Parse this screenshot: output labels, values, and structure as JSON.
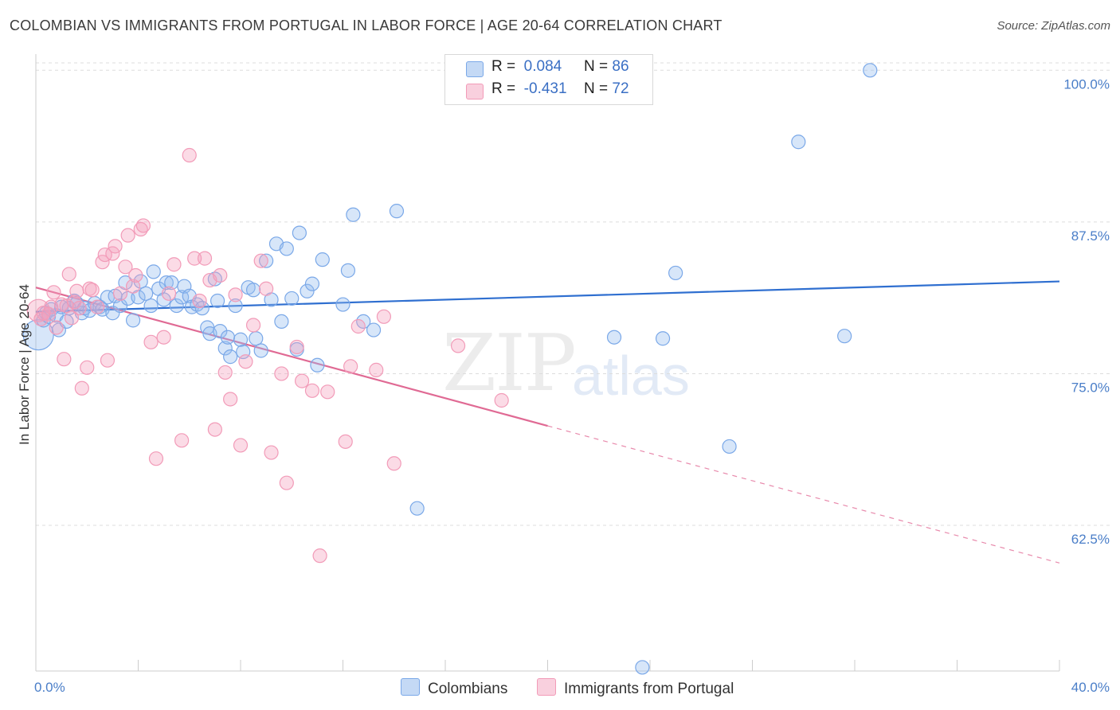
{
  "title": "COLOMBIAN VS IMMIGRANTS FROM PORTUGAL IN LABOR FORCE | AGE 20-64 CORRELATION CHART",
  "source": "Source: ZipAtlas.com",
  "watermark": {
    "zip": "ZIP",
    "atlas": "atlas"
  },
  "legend_top": [
    {
      "r_label": "R =",
      "r_value": "0.084",
      "n_label": "N =",
      "n_value": "86",
      "color": "#7aa8e8"
    },
    {
      "r_label": "R =",
      "r_value": "-0.431",
      "n_label": "N =",
      "n_value": "72",
      "color": "#f29bb8"
    }
  ],
  "legend_bottom": [
    "Colombians",
    "Immigrants from Portugal"
  ],
  "chart_data": {
    "type": "scatter",
    "title": "COLOMBIAN VS IMMIGRANTS FROM PORTUGAL IN LABOR FORCE | AGE 20-64 CORRELATION CHART",
    "xlabel": "",
    "ylabel": "In Labor Force | Age 20-64",
    "xlim": [
      0,
      40
    ],
    "ylim": [
      50.5,
      101.2
    ],
    "x_ticks": [
      "0.0%",
      "40.0%"
    ],
    "y_ticks": [
      {
        "v": 100,
        "label": "100.0%"
      },
      {
        "v": 87.5,
        "label": "87.5%"
      },
      {
        "v": 75,
        "label": "75.0%"
      },
      {
        "v": 62.5,
        "label": "62.5%"
      }
    ],
    "grid": "horizontal dashed",
    "series": [
      {
        "name": "Colombians",
        "color": "#7aa8e8",
        "trend": {
          "x0": 0,
          "y0": 80.1,
          "x1": 40,
          "y1": 82.6
        },
        "points": [
          [
            0.1,
            78.2
          ],
          [
            0.3,
            79.4
          ],
          [
            0.4,
            80.0
          ],
          [
            0.5,
            79.7
          ],
          [
            0.6,
            80.3
          ],
          [
            0.8,
            79.8
          ],
          [
            0.9,
            78.6
          ],
          [
            1.0,
            80.5
          ],
          [
            1.2,
            79.3
          ],
          [
            1.3,
            80.4
          ],
          [
            1.5,
            81.0
          ],
          [
            1.6,
            80.8
          ],
          [
            1.8,
            80.0
          ],
          [
            1.9,
            80.4
          ],
          [
            2.1,
            80.2
          ],
          [
            2.3,
            80.8
          ],
          [
            2.5,
            80.5
          ],
          [
            2.6,
            80.3
          ],
          [
            2.8,
            81.3
          ],
          [
            3.0,
            80.0
          ],
          [
            3.1,
            81.4
          ],
          [
            3.3,
            80.6
          ],
          [
            3.5,
            82.5
          ],
          [
            3.6,
            81.2
          ],
          [
            3.8,
            79.4
          ],
          [
            4.0,
            81.3
          ],
          [
            4.1,
            82.6
          ],
          [
            4.3,
            81.6
          ],
          [
            4.5,
            80.6
          ],
          [
            4.6,
            83.4
          ],
          [
            4.8,
            82.0
          ],
          [
            5.0,
            81.1
          ],
          [
            5.1,
            82.5
          ],
          [
            5.3,
            82.5
          ],
          [
            5.5,
            80.6
          ],
          [
            5.7,
            81.3
          ],
          [
            5.8,
            82.2
          ],
          [
            6.0,
            81.4
          ],
          [
            6.1,
            80.5
          ],
          [
            6.3,
            80.7
          ],
          [
            6.5,
            80.4
          ],
          [
            6.7,
            78.8
          ],
          [
            6.8,
            78.3
          ],
          [
            7.0,
            82.8
          ],
          [
            7.1,
            81.0
          ],
          [
            7.2,
            78.5
          ],
          [
            7.4,
            77.1
          ],
          [
            7.5,
            78.0
          ],
          [
            7.6,
            76.4
          ],
          [
            7.8,
            80.6
          ],
          [
            8.0,
            77.8
          ],
          [
            8.1,
            76.8
          ],
          [
            8.3,
            82.1
          ],
          [
            8.5,
            81.9
          ],
          [
            8.6,
            77.9
          ],
          [
            8.8,
            76.9
          ],
          [
            9.0,
            84.3
          ],
          [
            9.2,
            81.1
          ],
          [
            9.4,
            85.7
          ],
          [
            9.6,
            79.3
          ],
          [
            9.8,
            85.3
          ],
          [
            10.0,
            81.2
          ],
          [
            10.2,
            77.0
          ],
          [
            10.3,
            86.6
          ],
          [
            10.6,
            81.8
          ],
          [
            10.8,
            82.4
          ],
          [
            11.0,
            75.7
          ],
          [
            11.2,
            84.4
          ],
          [
            12.0,
            80.7
          ],
          [
            12.2,
            83.5
          ],
          [
            12.4,
            88.1
          ],
          [
            12.8,
            79.3
          ],
          [
            13.2,
            78.6
          ],
          [
            14.1,
            88.4
          ],
          [
            14.9,
            63.9
          ],
          [
            22.6,
            78.0
          ],
          [
            23.7,
            50.8
          ],
          [
            24.5,
            77.9
          ],
          [
            25.0,
            83.3
          ],
          [
            27.1,
            69.0
          ],
          [
            29.8,
            94.1
          ],
          [
            31.6,
            78.1
          ],
          [
            32.6,
            100.0
          ]
        ]
      },
      {
        "name": "Immigrants from Portugal",
        "color": "#f29bb8",
        "trend": {
          "x0": 0,
          "y0": 82.1,
          "x1": 20,
          "y1": 70.7,
          "dash_x1": 40,
          "dash_y1": 59.4
        },
        "points": [
          [
            0.1,
            80.2
          ],
          [
            0.2,
            79.5
          ],
          [
            0.3,
            80.0
          ],
          [
            0.5,
            79.9
          ],
          [
            0.6,
            80.5
          ],
          [
            0.7,
            81.7
          ],
          [
            0.8,
            78.8
          ],
          [
            1.0,
            80.7
          ],
          [
            1.1,
            76.2
          ],
          [
            1.2,
            80.6
          ],
          [
            1.3,
            83.2
          ],
          [
            1.4,
            79.6
          ],
          [
            1.5,
            80.9
          ],
          [
            1.6,
            81.8
          ],
          [
            1.7,
            80.4
          ],
          [
            1.8,
            73.8
          ],
          [
            2.0,
            75.5
          ],
          [
            2.1,
            82.0
          ],
          [
            2.2,
            81.9
          ],
          [
            2.4,
            80.5
          ],
          [
            2.6,
            84.2
          ],
          [
            2.7,
            84.8
          ],
          [
            2.8,
            76.1
          ],
          [
            3.0,
            84.9
          ],
          [
            3.1,
            85.5
          ],
          [
            3.3,
            81.6
          ],
          [
            3.5,
            83.8
          ],
          [
            3.6,
            86.4
          ],
          [
            3.8,
            82.2
          ],
          [
            3.9,
            83.1
          ],
          [
            4.1,
            86.9
          ],
          [
            4.2,
            87.2
          ],
          [
            4.5,
            77.6
          ],
          [
            4.7,
            68.0
          ],
          [
            5.0,
            78.0
          ],
          [
            5.2,
            81.6
          ],
          [
            5.4,
            84.0
          ],
          [
            5.7,
            69.5
          ],
          [
            6.0,
            93.0
          ],
          [
            6.2,
            84.5
          ],
          [
            6.4,
            81.0
          ],
          [
            6.6,
            84.5
          ],
          [
            6.8,
            82.7
          ],
          [
            7.0,
            70.4
          ],
          [
            7.2,
            83.1
          ],
          [
            7.4,
            75.1
          ],
          [
            7.6,
            72.9
          ],
          [
            7.8,
            81.5
          ],
          [
            8.0,
            69.1
          ],
          [
            8.2,
            76.0
          ],
          [
            8.5,
            79.0
          ],
          [
            8.8,
            84.3
          ],
          [
            9.0,
            82.0
          ],
          [
            9.2,
            68.5
          ],
          [
            9.6,
            75.0
          ],
          [
            9.8,
            66.0
          ],
          [
            10.2,
            77.2
          ],
          [
            10.4,
            74.4
          ],
          [
            10.8,
            73.6
          ],
          [
            11.1,
            60.0
          ],
          [
            11.4,
            73.5
          ],
          [
            12.3,
            75.6
          ],
          [
            12.6,
            78.9
          ],
          [
            13.3,
            75.3
          ],
          [
            13.6,
            79.7
          ],
          [
            14.0,
            67.6
          ],
          [
            16.5,
            77.3
          ],
          [
            18.2,
            72.8
          ],
          [
            12.1,
            69.4
          ]
        ]
      }
    ]
  }
}
